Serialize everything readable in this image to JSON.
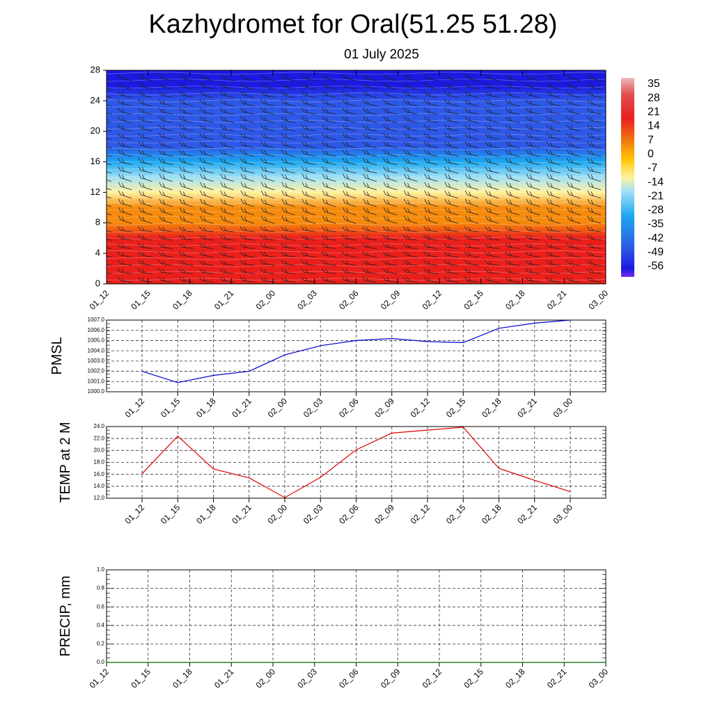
{
  "header": {
    "title": "Kazhydromet for Oral(51.25 51.28)",
    "subtitle": "01 July 2025"
  },
  "chart_data": [
    {
      "type": "heatmap",
      "name": "temperature-height cross section",
      "x_ticks": [
        "01_12",
        "01_15",
        "01_18",
        "01_21",
        "02_00",
        "02_03",
        "02_06",
        "02_09",
        "02_12",
        "02_15",
        "02_18",
        "02_21",
        "03_00"
      ],
      "y_ticks": [
        0,
        4,
        8,
        12,
        16,
        20,
        24,
        28
      ],
      "ylim": [
        0,
        28
      ],
      "colorbar_labels": [
        "35",
        "28",
        "21",
        "14",
        "7",
        "0",
        "-7",
        "-14",
        "-21",
        "-28",
        "-35",
        "-42",
        "-49",
        "-56"
      ],
      "colorbar_range": [
        -60,
        38
      ],
      "temperature_profile": {
        "levels": [
          0,
          2,
          4,
          6,
          8,
          10,
          12,
          14,
          16,
          18,
          20,
          22,
          24,
          26,
          28
        ],
        "values": [
          22,
          19,
          16,
          12,
          8,
          2,
          -8,
          -22,
          -32,
          -40,
          -44,
          -46,
          -48,
          -52,
          -54
        ]
      },
      "colors": {
        "red": "#ea1f1c",
        "orange": "#f58a0c",
        "yellow": "#fff3a0",
        "light_blue": "#9fe0f7",
        "cyan": "#1ba8ef",
        "blue": "#2d57e6",
        "deep_blue": "#1a1ae0",
        "violet": "#8a3cf0"
      }
    },
    {
      "type": "line",
      "ylabel": "PMSL",
      "categories": [
        "01_12",
        "01_15",
        "01_18",
        "01_21",
        "02_00",
        "02_03",
        "02_06",
        "02_09",
        "02_12",
        "02_15",
        "02_18",
        "02_21",
        "03_00"
      ],
      "series": [
        {
          "values": [
            1002.0,
            1000.9,
            1001.6,
            1002.0,
            1003.6,
            1004.5,
            1005.0,
            1005.2,
            1004.9,
            1004.8,
            1006.2,
            1006.7,
            1007.0
          ]
        }
      ],
      "ylim": [
        1000.0,
        1007.0
      ],
      "y_ticks": [
        "1000.0",
        "1001.0",
        "1002.0",
        "1003.0",
        "1004.0",
        "1005.0",
        "1006.0",
        "1007.0"
      ],
      "grid": true,
      "color": "#0000cc"
    },
    {
      "type": "line",
      "ylabel": "TEMP at 2 M",
      "categories": [
        "01_12",
        "01_15",
        "01_18",
        "01_21",
        "02_00",
        "02_03",
        "02_06",
        "02_09",
        "02_12",
        "02_15",
        "02_18",
        "02_21",
        "03_00"
      ],
      "series": [
        {
          "values": [
            16.1,
            22.4,
            16.9,
            15.4,
            12.1,
            15.5,
            20.1,
            22.9,
            23.4,
            23.9,
            17.0,
            15.0,
            13.1
          ]
        }
      ],
      "ylim": [
        12.0,
        24.0
      ],
      "y_ticks": [
        "12.0",
        "14.0",
        "16.0",
        "18.0",
        "20.0",
        "22.0",
        "24.0"
      ],
      "grid": true,
      "color": "#dd0000"
    },
    {
      "type": "line",
      "ylabel": "PRECIP, mm",
      "categories": [
        "01_12",
        "01_15",
        "01_18",
        "01_21",
        "02_00",
        "02_03",
        "02_06",
        "02_09",
        "02_12",
        "02_15",
        "02_18",
        "02_21",
        "03_00"
      ],
      "series": [
        {
          "values": [
            0,
            0,
            0,
            0,
            0,
            0,
            0,
            0,
            0,
            0,
            0,
            0,
            0
          ]
        }
      ],
      "ylim": [
        0.0,
        1.0
      ],
      "y_ticks": [
        "0.0",
        "0.2",
        "0.4",
        "0.6",
        "0.8",
        "1.0"
      ],
      "grid": true,
      "color": "#006600"
    }
  ]
}
